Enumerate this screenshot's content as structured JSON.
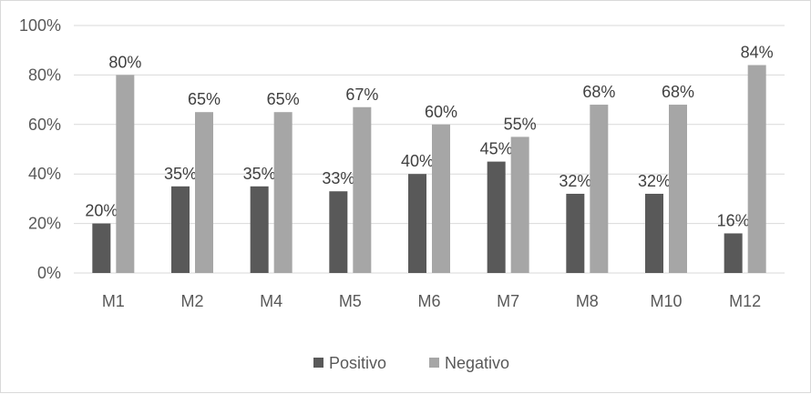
{
  "chart_data": {
    "type": "bar",
    "categories": [
      "M1",
      "M2",
      "M4",
      "M5",
      "M6",
      "M7",
      "M8",
      "M10",
      "M12"
    ],
    "series": [
      {
        "name": "Positivo",
        "values": [
          20,
          35,
          35,
          33,
          40,
          45,
          32,
          32,
          16
        ],
        "labels": [
          "20%",
          "35%",
          "35%",
          "33%",
          "40%",
          "45%",
          "32%",
          "32%",
          "16%"
        ],
        "color": "#595959"
      },
      {
        "name": "Negativo",
        "values": [
          80,
          65,
          65,
          67,
          60,
          55,
          68,
          68,
          84
        ],
        "labels": [
          "80%",
          "65%",
          "65%",
          "67%",
          "60%",
          "55%",
          "68%",
          "68%",
          "84%"
        ],
        "color": "#a6a6a6"
      }
    ],
    "ylim": [
      0,
      100
    ],
    "yticks": [
      0,
      20,
      40,
      60,
      80,
      100
    ],
    "ytick_labels": [
      "0%",
      "20%",
      "40%",
      "60%",
      "80%",
      "100%"
    ],
    "title": "",
    "xlabel": "",
    "ylabel": "",
    "grid": true,
    "gridline_color": "#d9d9d9",
    "legend_position": "bottom"
  }
}
